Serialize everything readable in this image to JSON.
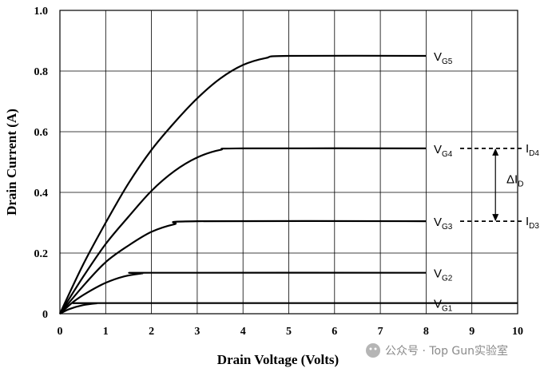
{
  "chart_data": {
    "type": "line",
    "xlabel": "Drain Voltage   (Volts)",
    "ylabel": "Drain Current  (A)",
    "xlim": [
      0,
      10
    ],
    "ylim": [
      0,
      1.0
    ],
    "x_ticks": [
      "0",
      "1",
      "2",
      "3",
      "4",
      "5",
      "6",
      "7",
      "8",
      "9",
      "10"
    ],
    "y_ticks": [
      "0",
      "0.2",
      "0.4",
      "0.6",
      "0.8",
      "1.0"
    ],
    "grid": true,
    "series": [
      {
        "name": "V",
        "sub": "G1",
        "x": [
          0,
          0.2,
          0.5,
          0.8,
          1.0,
          10.0
        ],
        "y": [
          0,
          0.015,
          0.028,
          0.034,
          0.035,
          0.035
        ]
      },
      {
        "name": "V",
        "sub": "G2",
        "x": [
          0,
          0.3,
          0.6,
          1.0,
          1.4,
          1.8,
          2.0,
          8.0
        ],
        "y": [
          0,
          0.04,
          0.07,
          0.102,
          0.123,
          0.133,
          0.135,
          0.135
        ]
      },
      {
        "name": "V",
        "sub": "G3",
        "x": [
          0,
          0.5,
          1.0,
          1.5,
          2.0,
          2.5,
          3.0,
          8.0
        ],
        "y": [
          0,
          0.09,
          0.17,
          0.225,
          0.27,
          0.295,
          0.305,
          0.305
        ]
      },
      {
        "name": "V",
        "sub": "G4",
        "x": [
          0,
          0.5,
          1.0,
          1.5,
          2.0,
          2.5,
          3.0,
          3.5,
          4.0,
          8.0
        ],
        "y": [
          0,
          0.12,
          0.23,
          0.32,
          0.405,
          0.47,
          0.515,
          0.54,
          0.545,
          0.545
        ]
      },
      {
        "name": "V",
        "sub": "G5",
        "x": [
          0,
          0.5,
          1.0,
          1.5,
          2.0,
          2.5,
          3.0,
          3.5,
          4.0,
          4.5,
          5.0,
          8.0
        ],
        "y": [
          0,
          0.16,
          0.3,
          0.43,
          0.54,
          0.63,
          0.71,
          0.775,
          0.82,
          0.843,
          0.85,
          0.85
        ]
      }
    ],
    "annotations": {
      "upper_level": {
        "label": "I",
        "sub": "D4",
        "y": 0.545
      },
      "lower_level": {
        "label": "I",
        "sub": "D3",
        "y": 0.305
      },
      "delta": {
        "label": "ΔI",
        "sub": "D",
        "x": 9.55
      }
    }
  },
  "watermark": "公众号 · Top Gun实验室"
}
